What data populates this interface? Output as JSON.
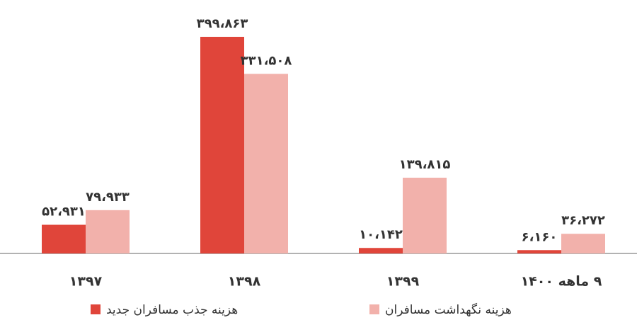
{
  "chart_data": {
    "type": "bar",
    "categories": [
      "۱۳۹۷",
      "۱۳۹۸",
      "۱۳۹۹",
      "۹ ماهه ۱۴۰۰"
    ],
    "series": [
      {
        "name": "هزینه جذب مسافران جدید",
        "color": "#e0453a",
        "values": [
          52931,
          399863,
          10142,
          6160
        ],
        "value_labels": [
          "۵۲،۹۳۱",
          "۳۹۹،۸۶۳",
          "۱۰،۱۴۲",
          "۶،۱۶۰"
        ]
      },
      {
        "name": "هزینه نگهداشت مسافران",
        "color": "#f2b1ab",
        "values": [
          79933,
          331508,
          139815,
          36272
        ],
        "value_labels": [
          "۷۹،۹۳۳",
          "۳۳۱،۵۰۸",
          "۱۳۹،۸۱۵",
          "۳۶،۲۷۲"
        ]
      }
    ]
  }
}
